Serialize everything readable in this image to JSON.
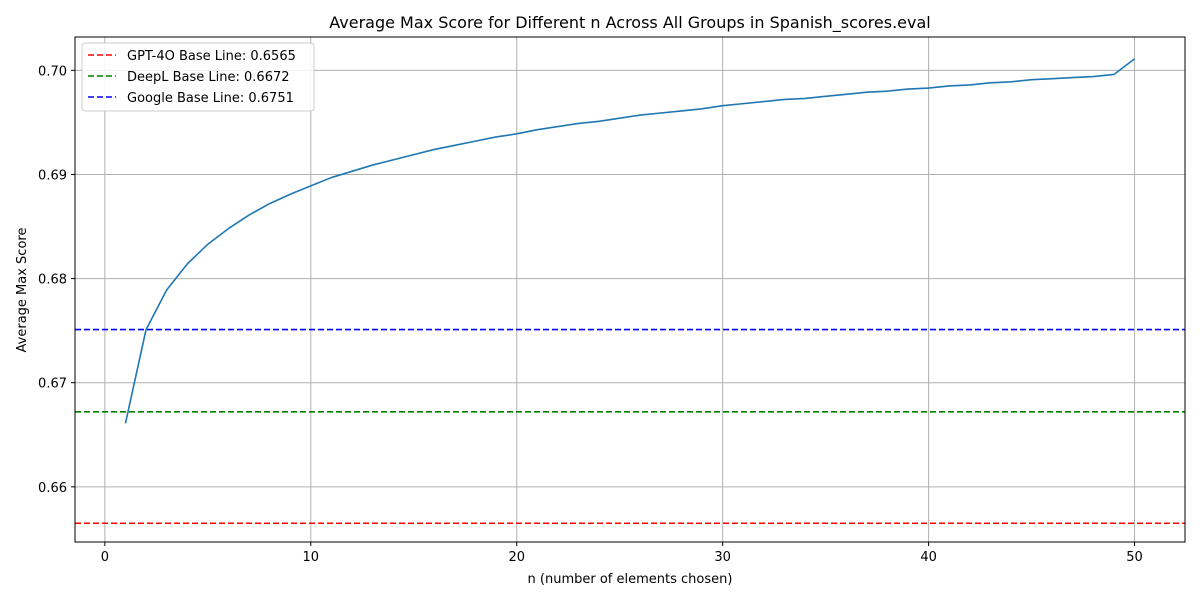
{
  "chart_data": {
    "type": "line",
    "title": "Average Max Score for Different n Across All Groups in Spanish_scores.eval",
    "xlabel": "n (number of elements chosen)",
    "ylabel": "Average Max Score",
    "xlim": [
      -1.45,
      52.45
    ],
    "ylim": [
      0.6547,
      0.7032
    ],
    "xticks": [
      0,
      10,
      20,
      30,
      40,
      50
    ],
    "yticks": [
      0.66,
      0.67,
      0.68,
      0.69,
      0.7
    ],
    "xtick_labels": [
      "0",
      "10",
      "20",
      "30",
      "40",
      "50"
    ],
    "ytick_labels": [
      "0.66",
      "0.67",
      "0.68",
      "0.69",
      "0.70"
    ],
    "grid": true,
    "legend_position": "top-left",
    "series": [
      {
        "name": "",
        "color": "#1f77b4",
        "x": [
          1,
          2,
          3,
          4,
          5,
          6,
          7,
          8,
          9,
          10,
          11,
          12,
          13,
          14,
          15,
          16,
          17,
          18,
          19,
          20,
          21,
          22,
          23,
          24,
          25,
          26,
          27,
          28,
          29,
          30,
          31,
          32,
          33,
          34,
          35,
          36,
          37,
          38,
          39,
          40,
          41,
          42,
          43,
          44,
          45,
          46,
          47,
          48,
          49,
          50
        ],
        "y": [
          0.6661,
          0.6751,
          0.6789,
          0.6814,
          0.6833,
          0.6848,
          0.6861,
          0.6872,
          0.6881,
          0.6889,
          0.6897,
          0.6903,
          0.6909,
          0.6914,
          0.6919,
          0.6924,
          0.6928,
          0.6932,
          0.6936,
          0.6939,
          0.6943,
          0.6946,
          0.6949,
          0.6951,
          0.6954,
          0.6957,
          0.6959,
          0.6961,
          0.6963,
          0.6966,
          0.6968,
          0.697,
          0.6972,
          0.6973,
          0.6975,
          0.6977,
          0.6979,
          0.698,
          0.6982,
          0.6983,
          0.6985,
          0.6986,
          0.6988,
          0.6989,
          0.6991,
          0.6992,
          0.6993,
          0.6994,
          0.6996,
          0.7011
        ]
      }
    ],
    "baselines": [
      {
        "label": "GPT-4O Base Line: 0.6565",
        "value": 0.6565,
        "color": "#ff0000"
      },
      {
        "label": "DeepL Base Line: 0.6672",
        "value": 0.6672,
        "color": "#008000"
      },
      {
        "label": "Google Base Line: 0.6751",
        "value": 0.6751,
        "color": "#0000ff"
      }
    ]
  }
}
